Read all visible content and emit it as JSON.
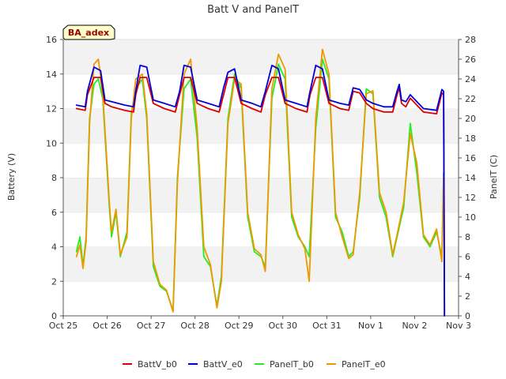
{
  "chart_data": {
    "type": "line",
    "title": "Batt V and PanelT",
    "badge": "BA_adex",
    "ylabel_left": "Battery (V)",
    "ylabel_right": "PanelT (C)",
    "x_ticks": [
      "Oct 25",
      "Oct 26",
      "Oct 27",
      "Oct 28",
      "Oct 29",
      "Oct 30",
      "Oct 31",
      "Nov 1",
      "Nov 2",
      "Nov 3"
    ],
    "xlim": [
      0,
      9
    ],
    "ylim_left": [
      0,
      16
    ],
    "ylim_right": [
      0,
      28
    ],
    "left_ticks": [
      0,
      2,
      4,
      6,
      8,
      10,
      12,
      14,
      16
    ],
    "right_ticks": [
      0,
      2,
      4,
      6,
      8,
      10,
      12,
      14,
      16,
      18,
      20,
      22,
      24,
      26,
      28
    ],
    "grid": "horizontal bands",
    "legend_position": "bottom",
    "series": [
      {
        "name": "BattV_b0",
        "axis": "left",
        "color": "#dd0000",
        "x": [
          0.3,
          0.5,
          0.55,
          0.7,
          0.85,
          0.95,
          1.1,
          1.4,
          1.6,
          1.65,
          1.75,
          1.9,
          2.05,
          2.3,
          2.55,
          2.65,
          2.75,
          2.9,
          3.05,
          3.3,
          3.55,
          3.65,
          3.75,
          3.9,
          4.05,
          4.3,
          4.5,
          4.6,
          4.75,
          4.9,
          5.05,
          5.3,
          5.55,
          5.62,
          5.75,
          5.9,
          6.05,
          6.3,
          6.5,
          6.6,
          6.75,
          6.9,
          7.05,
          7.3,
          7.5,
          7.6,
          7.65,
          7.7,
          7.8,
          7.9,
          8.2,
          8.5,
          8.62,
          8.66,
          8.68
        ],
        "y": [
          12.0,
          11.9,
          12.8,
          13.8,
          13.8,
          12.3,
          12.1,
          11.9,
          11.8,
          12.8,
          13.8,
          13.8,
          12.3,
          12.0,
          11.8,
          12.8,
          13.8,
          13.8,
          12.3,
          12.0,
          11.8,
          12.8,
          13.8,
          13.8,
          12.3,
          12.0,
          11.8,
          12.8,
          13.8,
          13.8,
          12.3,
          12.0,
          11.8,
          12.8,
          13.8,
          13.8,
          12.3,
          12.0,
          11.9,
          13.0,
          12.9,
          12.3,
          12.0,
          11.8,
          11.8,
          12.8,
          13.2,
          12.3,
          12.1,
          12.6,
          11.8,
          11.7,
          12.9,
          12.8,
          0.0
        ]
      },
      {
        "name": "BattV_e0",
        "axis": "left",
        "color": "#0000dd",
        "x": [
          0.3,
          0.5,
          0.55,
          0.7,
          0.85,
          0.95,
          1.1,
          1.4,
          1.6,
          1.65,
          1.75,
          1.9,
          2.05,
          2.3,
          2.55,
          2.65,
          2.75,
          2.9,
          3.05,
          3.3,
          3.55,
          3.65,
          3.75,
          3.9,
          4.05,
          4.3,
          4.5,
          4.6,
          4.75,
          4.9,
          5.05,
          5.3,
          5.55,
          5.62,
          5.75,
          5.9,
          6.05,
          6.3,
          6.5,
          6.6,
          6.75,
          6.9,
          7.05,
          7.3,
          7.5,
          7.6,
          7.65,
          7.7,
          7.8,
          7.9,
          8.2,
          8.5,
          8.62,
          8.66,
          8.68
        ],
        "y": [
          12.2,
          12.1,
          13.0,
          14.4,
          14.2,
          12.5,
          12.4,
          12.2,
          12.1,
          13.0,
          14.5,
          14.4,
          12.5,
          12.3,
          12.1,
          13.0,
          14.5,
          14.4,
          12.5,
          12.3,
          12.1,
          13.2,
          14.1,
          14.3,
          12.5,
          12.3,
          12.1,
          13.0,
          14.5,
          14.3,
          12.5,
          12.3,
          12.1,
          13.0,
          14.5,
          14.3,
          12.5,
          12.3,
          12.2,
          13.2,
          13.1,
          12.5,
          12.3,
          12.1,
          12.1,
          13.0,
          13.4,
          12.5,
          12.4,
          12.8,
          12.0,
          11.9,
          13.1,
          13.0,
          0.0
        ]
      },
      {
        "name": "PanelT_b0",
        "axis": "right",
        "color": "#22ee22",
        "x": [
          0.3,
          0.38,
          0.45,
          0.52,
          0.6,
          0.7,
          0.8,
          0.9,
          1.05,
          1.1,
          1.2,
          1.3,
          1.45,
          1.55,
          1.65,
          1.8,
          1.9,
          2.05,
          2.2,
          2.35,
          2.5,
          2.6,
          2.75,
          2.9,
          3.05,
          3.2,
          3.35,
          3.5,
          3.6,
          3.75,
          3.9,
          4.05,
          4.2,
          4.35,
          4.5,
          4.6,
          4.75,
          4.9,
          5.05,
          5.2,
          5.35,
          5.5,
          5.6,
          5.75,
          5.9,
          6.05,
          6.2,
          6.35,
          6.5,
          6.6,
          6.75,
          6.9,
          7.05,
          7.2,
          7.35,
          7.5,
          7.6,
          7.75,
          7.9,
          8.05,
          8.2,
          8.35,
          8.5,
          8.62,
          8.66
        ],
        "y": [
          6.5,
          8.0,
          5.0,
          8.0,
          20.0,
          23.5,
          24.0,
          22.0,
          11.0,
          8.0,
          10.5,
          6.0,
          8.5,
          20.5,
          23.0,
          24.0,
          20.0,
          5.0,
          3.0,
          2.5,
          0.5,
          14.0,
          23.0,
          24.0,
          18.0,
          6.0,
          5.0,
          1.0,
          4.0,
          20.0,
          24.5,
          23.0,
          10.0,
          6.5,
          6.0,
          5.0,
          22.0,
          25.5,
          24.0,
          10.0,
          8.0,
          7.0,
          6.0,
          19.0,
          26.0,
          24.0,
          10.0,
          8.5,
          6.0,
          6.5,
          12.0,
          23.0,
          22.5,
          12.0,
          10.0,
          6.0,
          8.0,
          11.0,
          19.5,
          14.5,
          8.0,
          7.0,
          8.5,
          6.0,
          14.5
        ]
      },
      {
        "name": "PanelT_e0",
        "axis": "right",
        "color": "#ee9900",
        "x": [
          0.3,
          0.38,
          0.45,
          0.52,
          0.6,
          0.7,
          0.8,
          0.9,
          1.05,
          1.1,
          1.2,
          1.3,
          1.45,
          1.55,
          1.65,
          1.8,
          1.9,
          2.05,
          2.2,
          2.35,
          2.5,
          2.6,
          2.75,
          2.9,
          3.05,
          3.2,
          3.35,
          3.5,
          3.6,
          3.75,
          3.9,
          4.05,
          4.2,
          4.35,
          4.5,
          4.6,
          4.75,
          4.9,
          5.05,
          5.2,
          5.35,
          5.5,
          5.6,
          5.75,
          5.9,
          6.05,
          6.2,
          6.35,
          6.5,
          6.6,
          6.75,
          6.9,
          7.05,
          7.2,
          7.35,
          7.5,
          7.6,
          7.75,
          7.9,
          8.05,
          8.2,
          8.35,
          8.5,
          8.62,
          8.66
        ],
        "y": [
          6.0,
          7.2,
          4.8,
          7.5,
          19.5,
          25.5,
          26.0,
          22.5,
          11.5,
          8.5,
          10.8,
          6.2,
          8.0,
          20.0,
          24.0,
          24.5,
          20.5,
          5.5,
          3.2,
          2.6,
          0.4,
          13.5,
          24.5,
          26.0,
          19.0,
          7.0,
          5.2,
          0.8,
          3.5,
          19.5,
          24.0,
          23.5,
          10.5,
          6.8,
          6.2,
          4.5,
          23.0,
          26.5,
          25.0,
          10.5,
          8.2,
          6.8,
          3.5,
          20.0,
          27.0,
          24.5,
          10.5,
          8.0,
          5.8,
          6.2,
          12.5,
          22.5,
          22.8,
          12.5,
          10.5,
          6.2,
          8.2,
          11.5,
          18.5,
          15.5,
          8.2,
          7.2,
          8.8,
          5.5,
          14.0
        ]
      }
    ]
  }
}
